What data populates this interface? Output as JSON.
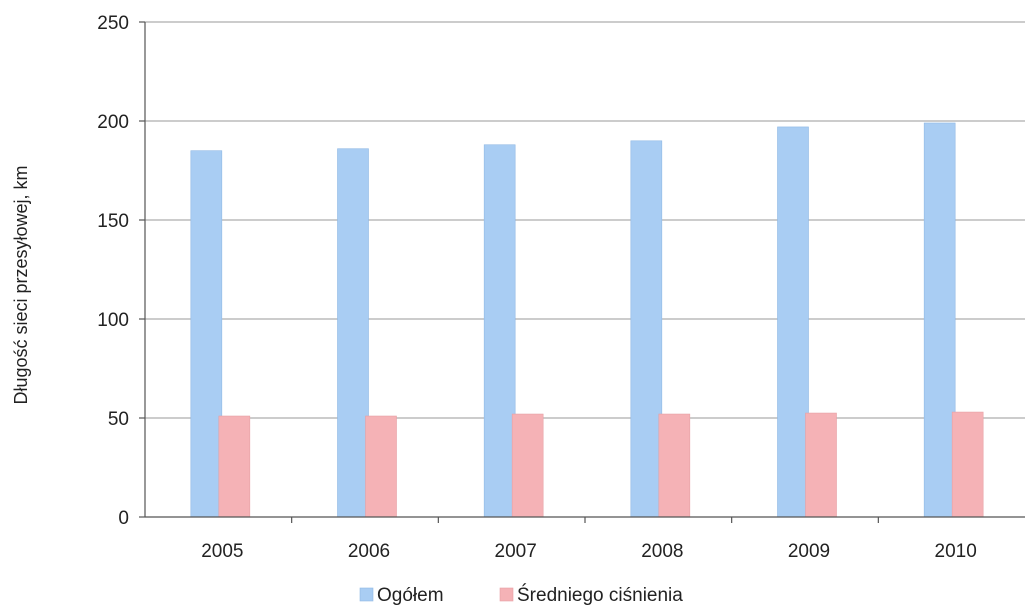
{
  "chart_data": {
    "type": "bar",
    "title": "",
    "xlabel": "",
    "ylabel": "Długość sieci przesyłowej, km",
    "categories": [
      "2005",
      "2006",
      "2007",
      "2008",
      "2009",
      "2010"
    ],
    "series": [
      {
        "name": "Ogółem",
        "color": "#a9cdf3",
        "values": [
          185,
          186,
          188,
          190,
          197,
          199
        ]
      },
      {
        "name": "Średniego ciśnienia",
        "color": "#f5b2b6",
        "values": [
          51,
          51,
          52,
          52,
          52.5,
          53
        ]
      }
    ],
    "ylim": [
      0,
      250
    ],
    "yticks": [
      "0",
      "50",
      "100",
      "150",
      "200",
      "250"
    ],
    "grid": true,
    "legend_position": "bottom"
  }
}
